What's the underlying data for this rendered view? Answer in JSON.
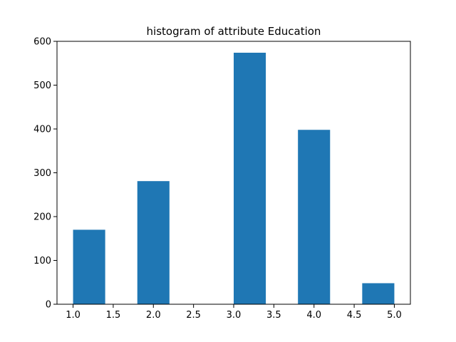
{
  "chart_data": {
    "type": "bar",
    "title": "histogram of attribute Education",
    "xlabel": "",
    "ylabel": "",
    "xlim": [
      0.8,
      5.2
    ],
    "ylim": [
      0,
      600
    ],
    "xticks": [
      1.0,
      1.5,
      2.0,
      2.5,
      3.0,
      3.5,
      4.0,
      4.5,
      5.0
    ],
    "xtick_labels": [
      "1.0",
      "1.5",
      "2.0",
      "2.5",
      "3.0",
      "3.5",
      "4.0",
      "4.5",
      "5.0"
    ],
    "yticks": [
      0,
      100,
      200,
      300,
      400,
      500,
      600
    ],
    "ytick_labels": [
      "0",
      "100",
      "200",
      "300",
      "400",
      "500",
      "600"
    ],
    "bins": [
      {
        "x0": 1.0,
        "x1": 1.4,
        "value": 170
      },
      {
        "x0": 1.4,
        "x1": 1.8,
        "value": 0
      },
      {
        "x0": 1.8,
        "x1": 2.2,
        "value": 281
      },
      {
        "x0": 2.2,
        "x1": 2.6,
        "value": 0
      },
      {
        "x0": 2.6,
        "x1": 3.0,
        "value": 0
      },
      {
        "x0": 3.0,
        "x1": 3.4,
        "value": 574
      },
      {
        "x0": 3.4,
        "x1": 3.8,
        "value": 0
      },
      {
        "x0": 3.8,
        "x1": 4.2,
        "value": 398
      },
      {
        "x0": 4.2,
        "x1": 4.6,
        "value": 0
      },
      {
        "x0": 4.6,
        "x1": 5.0,
        "value": 48
      }
    ],
    "bar_color": "#1f77b4",
    "grid": false,
    "legend": "none"
  }
}
